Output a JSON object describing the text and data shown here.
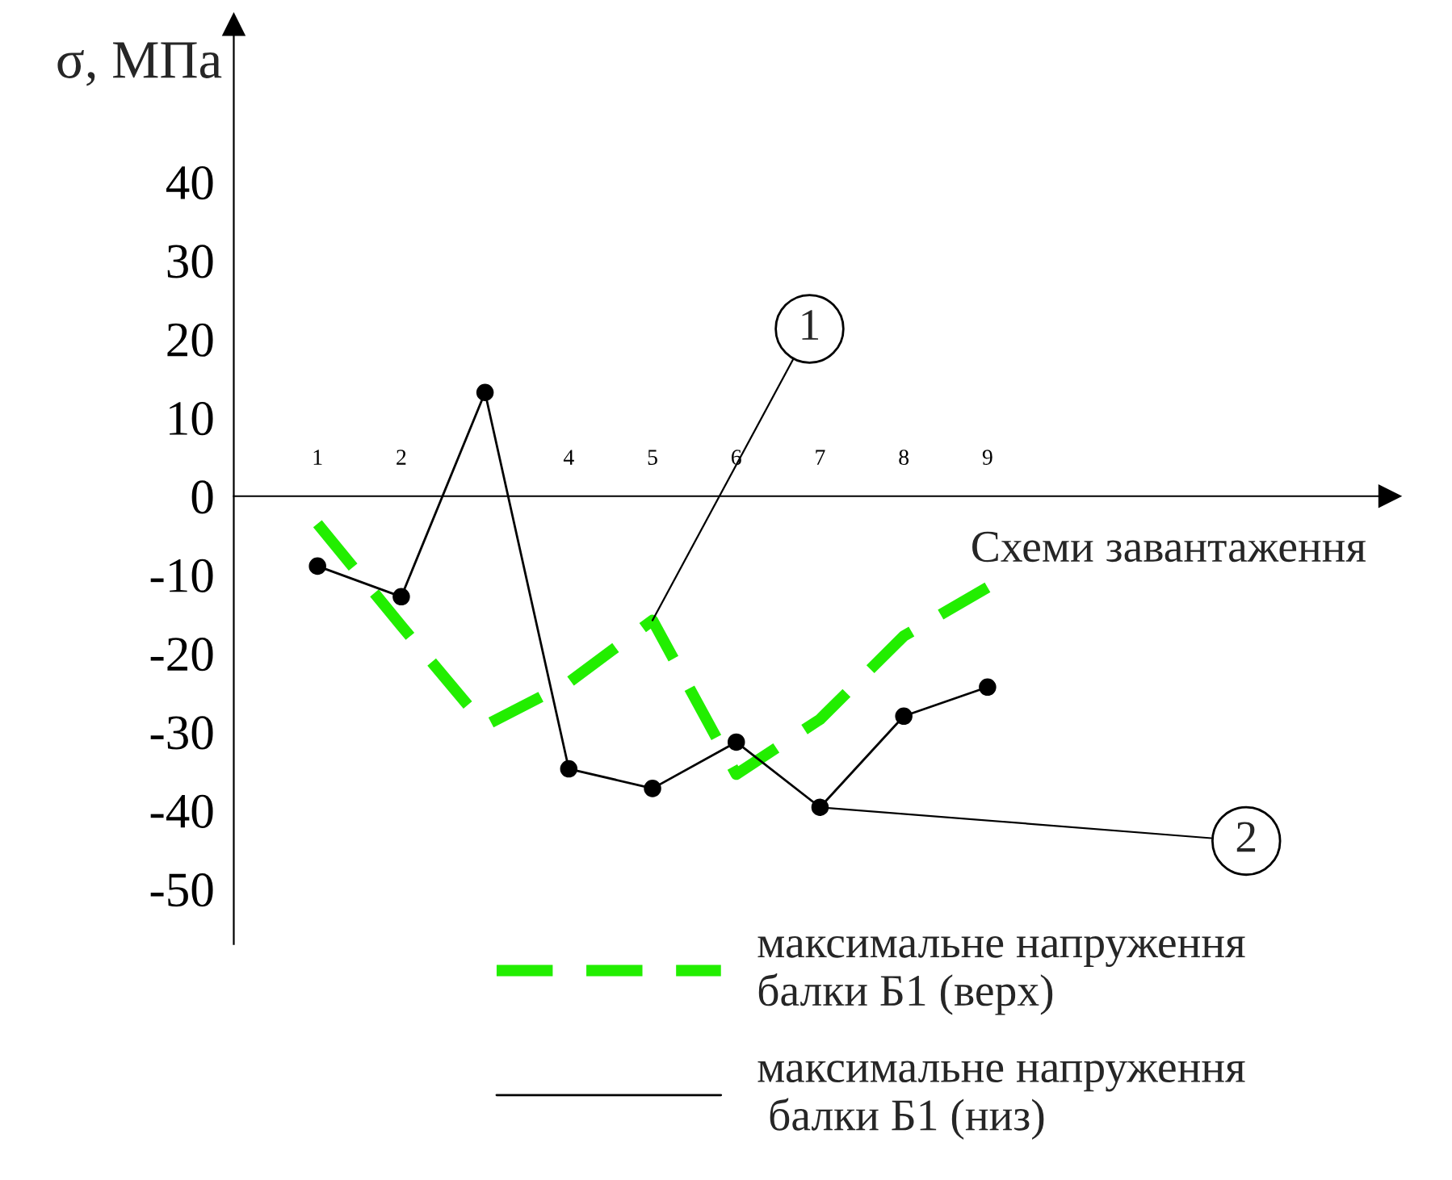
{
  "chart_data": {
    "type": "line",
    "ylabel": "σ, МПа",
    "xlabel": "Схеми завантаження",
    "categories": [
      "1",
      "2",
      null,
      "4",
      "5",
      "6",
      "7",
      "8",
      "9"
    ],
    "series": [
      {
        "name": "максимальне напруження\nбалки Б1 (верх)",
        "color": "#22ee00",
        "line_style": "dashed",
        "marker": "none",
        "values": [
          -3.5,
          -16.5,
          -29.2,
          -23.7,
          -15.8,
          -35.4,
          -28.4,
          -17.8,
          -11.6
        ]
      },
      {
        "name": "максимальне напруження\n балки Б1 (низ)",
        "color": "#000000",
        "line_style": "solid",
        "marker": "circle",
        "values": [
          -8.9,
          -12.8,
          13.2,
          -34.7,
          -37.2,
          -31.3,
          -39.6,
          -28,
          -24.3
        ]
      }
    ],
    "annotations": [
      {
        "text": "1",
        "x": "5",
        "y": -15.8
      },
      {
        "text": "2",
        "x": "7",
        "y": -39.6
      }
    ],
    "ylim": [
      -57,
      60
    ],
    "yticks": [
      -50,
      -40,
      -30,
      -20,
      -10,
      0,
      10,
      20,
      30,
      40
    ],
    "grid": false,
    "legend": "bottom"
  }
}
